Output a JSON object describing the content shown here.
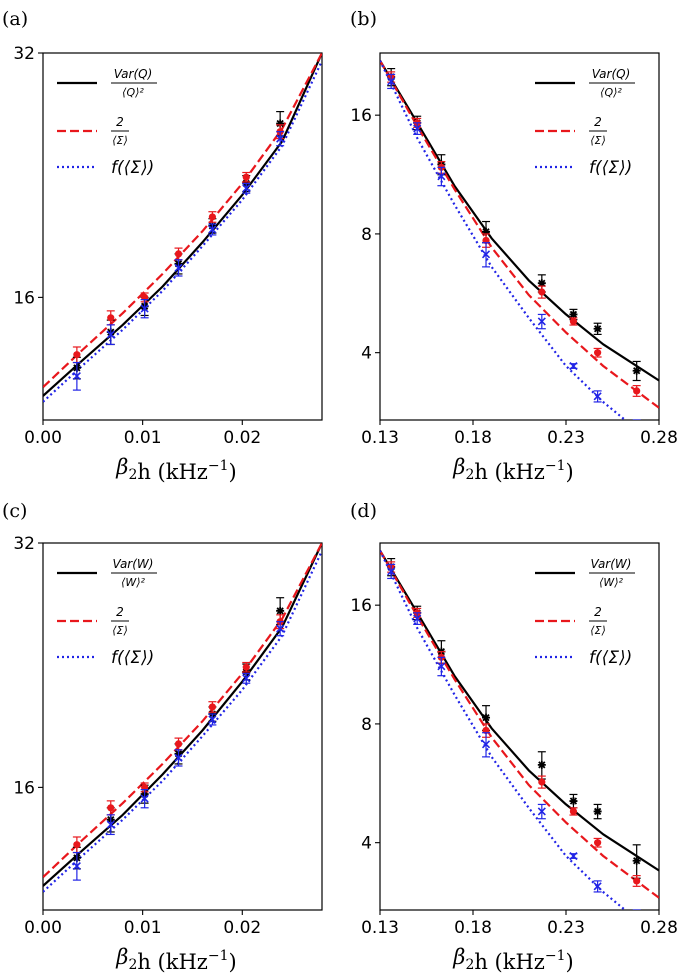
{
  "chart_data": [
    {
      "type": "line",
      "panel_label": "(a)",
      "xlabel": "β₂h (kHz⁻¹)",
      "xlabel_base": "β",
      "xlabel_sub": "2",
      "xlabel_rest": "h (kHz",
      "xlabel_sup": "−1",
      "xlabel_end": ")",
      "y_scale": "log",
      "xlim": [
        0.0,
        0.028
      ],
      "ylim": [
        11.3,
        32
      ],
      "xticks": [
        0.0,
        0.01,
        0.02
      ],
      "xtick_labels": [
        "0.00",
        "0.01",
        "0.02"
      ],
      "yticks": [
        16,
        32
      ],
      "ytick_labels": [
        "16",
        "32"
      ],
      "legend_position": "top-left",
      "legend": [
        {
          "kind": "frac",
          "num": "Var(Q)",
          "den": "⟨Q⟩²",
          "color": "#000000",
          "style": "solid"
        },
        {
          "kind": "frac",
          "num": "2",
          "den": "⟨Σ⟩",
          "color": "#e8171c",
          "style": "dashed"
        },
        {
          "kind": "text",
          "text": "f(⟨Σ⟩)",
          "color": "#2124e6",
          "style": "dotted"
        }
      ],
      "lines": [
        {
          "color": "#000000",
          "style": "solid",
          "x": [
            0.0,
            0.004,
            0.008,
            0.012,
            0.016,
            0.02,
            0.024,
            0.028
          ],
          "y": [
            12.1,
            13.4,
            14.8,
            16.5,
            18.7,
            21.4,
            24.9,
            32.0
          ]
        },
        {
          "color": "#e8171c",
          "style": "dashed",
          "x": [
            0.0,
            0.004,
            0.008,
            0.012,
            0.016,
            0.02,
            0.024,
            0.028
          ],
          "y": [
            12.4,
            13.8,
            15.3,
            17.1,
            19.3,
            22.1,
            25.8,
            32.0
          ]
        },
        {
          "color": "#2124e6",
          "style": "dotted",
          "x": [
            0.0,
            0.004,
            0.008,
            0.012,
            0.016,
            0.02,
            0.024,
            0.028
          ],
          "y": [
            11.9,
            13.2,
            14.6,
            16.3,
            18.5,
            21.1,
            24.6,
            31.3
          ]
        }
      ],
      "points": [
        {
          "color": "#000000",
          "marker": "star",
          "x": [
            0.0034,
            0.0068,
            0.0102,
            0.0136,
            0.017,
            0.0204,
            0.0238
          ],
          "y": [
            13.1,
            14.5,
            15.6,
            17.6,
            19.6,
            22.1,
            26.2
          ],
          "err": [
            0.4,
            0.5,
            0.4,
            0.5,
            0.4,
            0.5,
            0.9
          ]
        },
        {
          "color": "#e8171c",
          "marker": "dot",
          "x": [
            0.0034,
            0.0068,
            0.0102,
            0.0136,
            0.017,
            0.0204,
            0.0238
          ],
          "y": [
            13.6,
            15.1,
            16.0,
            18.1,
            20.1,
            22.5,
            25.6
          ],
          "err": [
            0.3,
            0.3,
            0.2,
            0.3,
            0.3,
            0.3,
            0.5
          ]
        },
        {
          "color": "#2124e6",
          "marker": "x",
          "x": [
            0.0034,
            0.0068,
            0.0102,
            0.0136,
            0.017,
            0.0204,
            0.0238
          ],
          "y": [
            12.8,
            14.4,
            15.5,
            17.4,
            19.4,
            21.8,
            25.1
          ],
          "err": [
            0.5,
            0.4,
            0.4,
            0.4,
            0.3,
            0.3,
            0.5
          ]
        }
      ]
    },
    {
      "type": "line",
      "panel_label": "(b)",
      "xlabel": "β₂h (kHz⁻¹)",
      "xlabel_base": "β",
      "xlabel_sub": "2",
      "xlabel_rest": "h (kHz",
      "xlabel_sup": "−1",
      "xlabel_end": ")",
      "y_scale": "log",
      "xlim": [
        0.13,
        0.28
      ],
      "ylim": [
        2.7,
        23
      ],
      "xticks": [
        0.13,
        0.18,
        0.23,
        0.28
      ],
      "xtick_labels": [
        "0.13",
        "0.18",
        "0.23",
        "0.28"
      ],
      "yticks": [
        4,
        8,
        16
      ],
      "ytick_labels": [
        "4",
        "8",
        "16"
      ],
      "legend_position": "top-right",
      "legend": [
        {
          "kind": "frac",
          "num": "Var(Q)",
          "den": "⟨Q⟩²",
          "color": "#000000",
          "style": "solid"
        },
        {
          "kind": "frac",
          "num": "2",
          "den": "⟨Σ⟩",
          "color": "#e8171c",
          "style": "dashed"
        },
        {
          "kind": "text",
          "text": "f(⟨Σ⟩)",
          "color": "#2124e6",
          "style": "dotted"
        }
      ],
      "lines": [
        {
          "color": "#000000",
          "style": "solid",
          "x": [
            0.13,
            0.15,
            0.17,
            0.19,
            0.21,
            0.23,
            0.25,
            0.28
          ],
          "y": [
            22.0,
            15.3,
            10.6,
            7.8,
            6.1,
            5.0,
            4.2,
            3.4
          ]
        },
        {
          "color": "#e8171c",
          "style": "dashed",
          "x": [
            0.13,
            0.15,
            0.17,
            0.19,
            0.21,
            0.23,
            0.25,
            0.28
          ],
          "y": [
            22.0,
            15.0,
            10.4,
            7.4,
            5.6,
            4.5,
            3.7,
            2.9
          ]
        },
        {
          "color": "#2124e6",
          "style": "dotted",
          "x": [
            0.13,
            0.15,
            0.17,
            0.19,
            0.21,
            0.23,
            0.25,
            0.275
          ],
          "y": [
            22.0,
            14.0,
            9.5,
            6.6,
            4.9,
            3.7,
            3.0,
            2.4
          ]
        }
      ],
      "points": [
        {
          "color": "#000000",
          "marker": "star",
          "x": [
            0.136,
            0.15,
            0.163,
            0.187,
            0.217,
            0.234,
            0.247,
            0.268
          ],
          "y": [
            20.0,
            15.3,
            12.0,
            8.1,
            6.0,
            5.0,
            4.6,
            3.6
          ],
          "err": [
            1.0,
            0.6,
            0.7,
            0.5,
            0.3,
            0.15,
            0.15,
            0.2
          ]
        },
        {
          "color": "#e8171c",
          "marker": "dot",
          "x": [
            0.136,
            0.15,
            0.163,
            0.187,
            0.217,
            0.234,
            0.247,
            0.268
          ],
          "y": [
            20.0,
            15.3,
            11.8,
            7.7,
            5.7,
            4.8,
            4.0,
            3.2
          ],
          "err": [
            0.6,
            0.4,
            0.4,
            0.3,
            0.2,
            0.1,
            0.1,
            0.1
          ]
        },
        {
          "color": "#2124e6",
          "marker": "x",
          "x": [
            0.136,
            0.15,
            0.163,
            0.187,
            0.217,
            0.234,
            0.247,
            0.268
          ],
          "y": [
            19.5,
            14.8,
            11.2,
            7.1,
            4.8,
            3.7,
            3.1,
            2.55
          ],
          "err": [
            0.8,
            0.5,
            0.6,
            0.5,
            0.2,
            0.05,
            0.1,
            0.15
          ]
        }
      ]
    },
    {
      "type": "line",
      "panel_label": "(c)",
      "xlabel": "β₂h (kHz⁻¹)",
      "xlabel_base": "β",
      "xlabel_sub": "2",
      "xlabel_rest": "h (kHz",
      "xlabel_sup": "−1",
      "xlabel_end": ")",
      "y_scale": "log",
      "xlim": [
        0.0,
        0.028
      ],
      "ylim": [
        11.3,
        32
      ],
      "xticks": [
        0.0,
        0.01,
        0.02
      ],
      "xtick_labels": [
        "0.00",
        "0.01",
        "0.02"
      ],
      "yticks": [
        16,
        32
      ],
      "ytick_labels": [
        "16",
        "32"
      ],
      "legend_position": "top-left",
      "legend": [
        {
          "kind": "frac",
          "num": "Var(W)",
          "den": "⟨W⟩²",
          "color": "#000000",
          "style": "solid"
        },
        {
          "kind": "frac",
          "num": "2",
          "den": "⟨Σ⟩",
          "color": "#e8171c",
          "style": "dashed"
        },
        {
          "kind": "text",
          "text": "f(⟨Σ⟩)",
          "color": "#2124e6",
          "style": "dotted"
        }
      ],
      "lines": [
        {
          "color": "#000000",
          "style": "solid",
          "x": [
            0.0,
            0.004,
            0.008,
            0.012,
            0.016,
            0.02,
            0.024,
            0.028
          ],
          "y": [
            12.1,
            13.4,
            14.8,
            16.6,
            18.8,
            21.6,
            25.2,
            32.0
          ]
        },
        {
          "color": "#e8171c",
          "style": "dashed",
          "x": [
            0.0,
            0.004,
            0.008,
            0.012,
            0.016,
            0.02,
            0.024,
            0.028
          ],
          "y": [
            12.4,
            13.8,
            15.3,
            17.1,
            19.3,
            22.1,
            25.8,
            32.0
          ]
        },
        {
          "color": "#2124e6",
          "style": "dotted",
          "x": [
            0.0,
            0.004,
            0.008,
            0.012,
            0.016,
            0.02,
            0.024,
            0.028
          ],
          "y": [
            11.9,
            13.2,
            14.6,
            16.3,
            18.5,
            21.1,
            24.6,
            31.3
          ]
        }
      ],
      "points": [
        {
          "color": "#000000",
          "marker": "star",
          "x": [
            0.0034,
            0.0068,
            0.0102,
            0.0136,
            0.017,
            0.0204,
            0.0238
          ],
          "y": [
            13.1,
            14.6,
            15.7,
            17.6,
            19.7,
            22.2,
            26.4
          ],
          "err": [
            0.4,
            0.5,
            0.4,
            0.5,
            0.4,
            0.5,
            1.0
          ]
        },
        {
          "color": "#e8171c",
          "marker": "dot",
          "x": [
            0.0034,
            0.0068,
            0.0102,
            0.0136,
            0.017,
            0.0204,
            0.0238
          ],
          "y": [
            13.6,
            15.1,
            16.0,
            18.1,
            20.1,
            22.5,
            25.6
          ],
          "err": [
            0.3,
            0.3,
            0.2,
            0.3,
            0.3,
            0.3,
            0.5
          ]
        },
        {
          "color": "#2124e6",
          "marker": "x",
          "x": [
            0.0034,
            0.0068,
            0.0102,
            0.0136,
            0.017,
            0.0204,
            0.0238
          ],
          "y": [
            12.8,
            14.4,
            15.5,
            17.4,
            19.4,
            21.8,
            25.1
          ],
          "err": [
            0.5,
            0.4,
            0.4,
            0.4,
            0.3,
            0.3,
            0.5
          ]
        }
      ]
    },
    {
      "type": "line",
      "panel_label": "(d)",
      "xlabel": "β₂h (kHz⁻¹)",
      "xlabel_base": "β",
      "xlabel_sub": "2",
      "xlabel_rest": "h (kHz",
      "xlabel_sup": "−1",
      "xlabel_end": ")",
      "y_scale": "log",
      "xlim": [
        0.13,
        0.28
      ],
      "ylim": [
        2.7,
        23
      ],
      "xticks": [
        0.13,
        0.18,
        0.23,
        0.28
      ],
      "xtick_labels": [
        "0.13",
        "0.18",
        "0.23",
        "0.28"
      ],
      "yticks": [
        4,
        8,
        16
      ],
      "ytick_labels": [
        "4",
        "8",
        "16"
      ],
      "legend_position": "top-right",
      "legend": [
        {
          "kind": "frac",
          "num": "Var(W)",
          "den": "⟨W⟩²",
          "color": "#000000",
          "style": "solid"
        },
        {
          "kind": "frac",
          "num": "2",
          "den": "⟨Σ⟩",
          "color": "#e8171c",
          "style": "dashed"
        },
        {
          "kind": "text",
          "text": "f(⟨Σ⟩)",
          "color": "#2124e6",
          "style": "dotted"
        }
      ],
      "lines": [
        {
          "color": "#000000",
          "style": "solid",
          "x": [
            0.13,
            0.15,
            0.17,
            0.19,
            0.21,
            0.23,
            0.25,
            0.28
          ],
          "y": [
            22.0,
            15.3,
            10.6,
            7.8,
            6.1,
            5.0,
            4.2,
            3.4
          ]
        },
        {
          "color": "#e8171c",
          "style": "dashed",
          "x": [
            0.13,
            0.15,
            0.17,
            0.19,
            0.21,
            0.23,
            0.25,
            0.28
          ],
          "y": [
            22.0,
            15.0,
            10.4,
            7.4,
            5.6,
            4.5,
            3.7,
            2.9
          ]
        },
        {
          "color": "#2124e6",
          "style": "dotted",
          "x": [
            0.13,
            0.15,
            0.17,
            0.19,
            0.21,
            0.23,
            0.25,
            0.275
          ],
          "y": [
            22.0,
            14.0,
            9.5,
            6.6,
            4.9,
            3.7,
            3.0,
            2.4
          ]
        }
      ],
      "points": [
        {
          "color": "#000000",
          "marker": "star",
          "x": [
            0.136,
            0.15,
            0.163,
            0.187,
            0.217,
            0.234,
            0.247,
            0.268
          ],
          "y": [
            20.0,
            15.3,
            12.2,
            8.3,
            6.3,
            5.1,
            4.8,
            3.6
          ],
          "err": [
            1.0,
            0.6,
            0.8,
            0.6,
            0.5,
            0.2,
            0.2,
            0.35
          ]
        },
        {
          "color": "#e8171c",
          "marker": "dot",
          "x": [
            0.136,
            0.15,
            0.163,
            0.187,
            0.217,
            0.234,
            0.247,
            0.268
          ],
          "y": [
            20.0,
            15.3,
            11.8,
            7.7,
            5.7,
            4.8,
            4.0,
            3.2
          ],
          "err": [
            0.6,
            0.4,
            0.4,
            0.3,
            0.2,
            0.1,
            0.1,
            0.1
          ]
        },
        {
          "color": "#2124e6",
          "marker": "x",
          "x": [
            0.136,
            0.15,
            0.163,
            0.187,
            0.217,
            0.234,
            0.247,
            0.268
          ],
          "y": [
            19.5,
            14.8,
            11.2,
            7.1,
            4.8,
            3.7,
            3.1,
            2.55
          ],
          "err": [
            0.8,
            0.5,
            0.6,
            0.5,
            0.2,
            0.05,
            0.1,
            0.15
          ]
        }
      ]
    }
  ]
}
